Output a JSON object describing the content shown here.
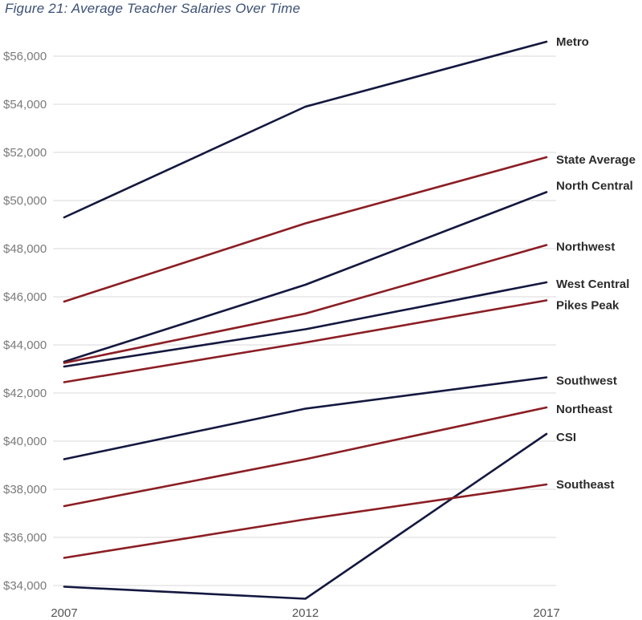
{
  "figure": {
    "title": "Figure 21: Average Teacher Salaries Over Time"
  },
  "chart_data": {
    "type": "line",
    "title": "Figure 21: Average Teacher Salaries Over Time",
    "xlabel": "",
    "ylabel": "",
    "x": [
      "2007",
      "2012",
      "2017"
    ],
    "ylim": [
      33500,
      57500
    ],
    "yticks": [
      34000,
      36000,
      38000,
      40000,
      42000,
      44000,
      46000,
      48000,
      50000,
      52000,
      54000,
      56000
    ],
    "ytick_labels": [
      "$34,000",
      "$36,000",
      "$38,000",
      "$40,000",
      "$42,000",
      "$44,000",
      "$46,000",
      "$48,000",
      "$50,000",
      "$52,000",
      "$54,000",
      "$56,000"
    ],
    "grid": "horizontal",
    "legend": "direct labels at right end of lines",
    "colors": {
      "navy": "#14183f",
      "red": "#8b1e24",
      "grid": "#d9d9d9"
    },
    "series": [
      {
        "name": "Metro",
        "color": "#14183f",
        "values": [
          49300,
          53900,
          56600
        ]
      },
      {
        "name": "State Average",
        "color": "#8b1e24",
        "values": [
          45800,
          49050,
          51800
        ]
      },
      {
        "name": "North Central",
        "color": "#14183f",
        "values": [
          43300,
          46500,
          50350
        ]
      },
      {
        "name": "Northwest",
        "color": "#8b1e24",
        "values": [
          43250,
          45300,
          48150
        ]
      },
      {
        "name": "West Central",
        "color": "#14183f",
        "values": [
          43100,
          44650,
          46600
        ]
      },
      {
        "name": "Pikes Peak",
        "color": "#8b1e24",
        "values": [
          42450,
          44100,
          45850
        ]
      },
      {
        "name": "Southwest",
        "color": "#14183f",
        "values": [
          39250,
          41350,
          42650
        ]
      },
      {
        "name": "Northeast",
        "color": "#8b1e24",
        "values": [
          37300,
          39250,
          41400
        ]
      },
      {
        "name": "CSI",
        "color": "#14183f",
        "values": [
          33950,
          33450,
          40300
        ]
      },
      {
        "name": "Southeast",
        "color": "#8b1e24",
        "values": [
          35150,
          36750,
          38200
        ]
      }
    ]
  }
}
